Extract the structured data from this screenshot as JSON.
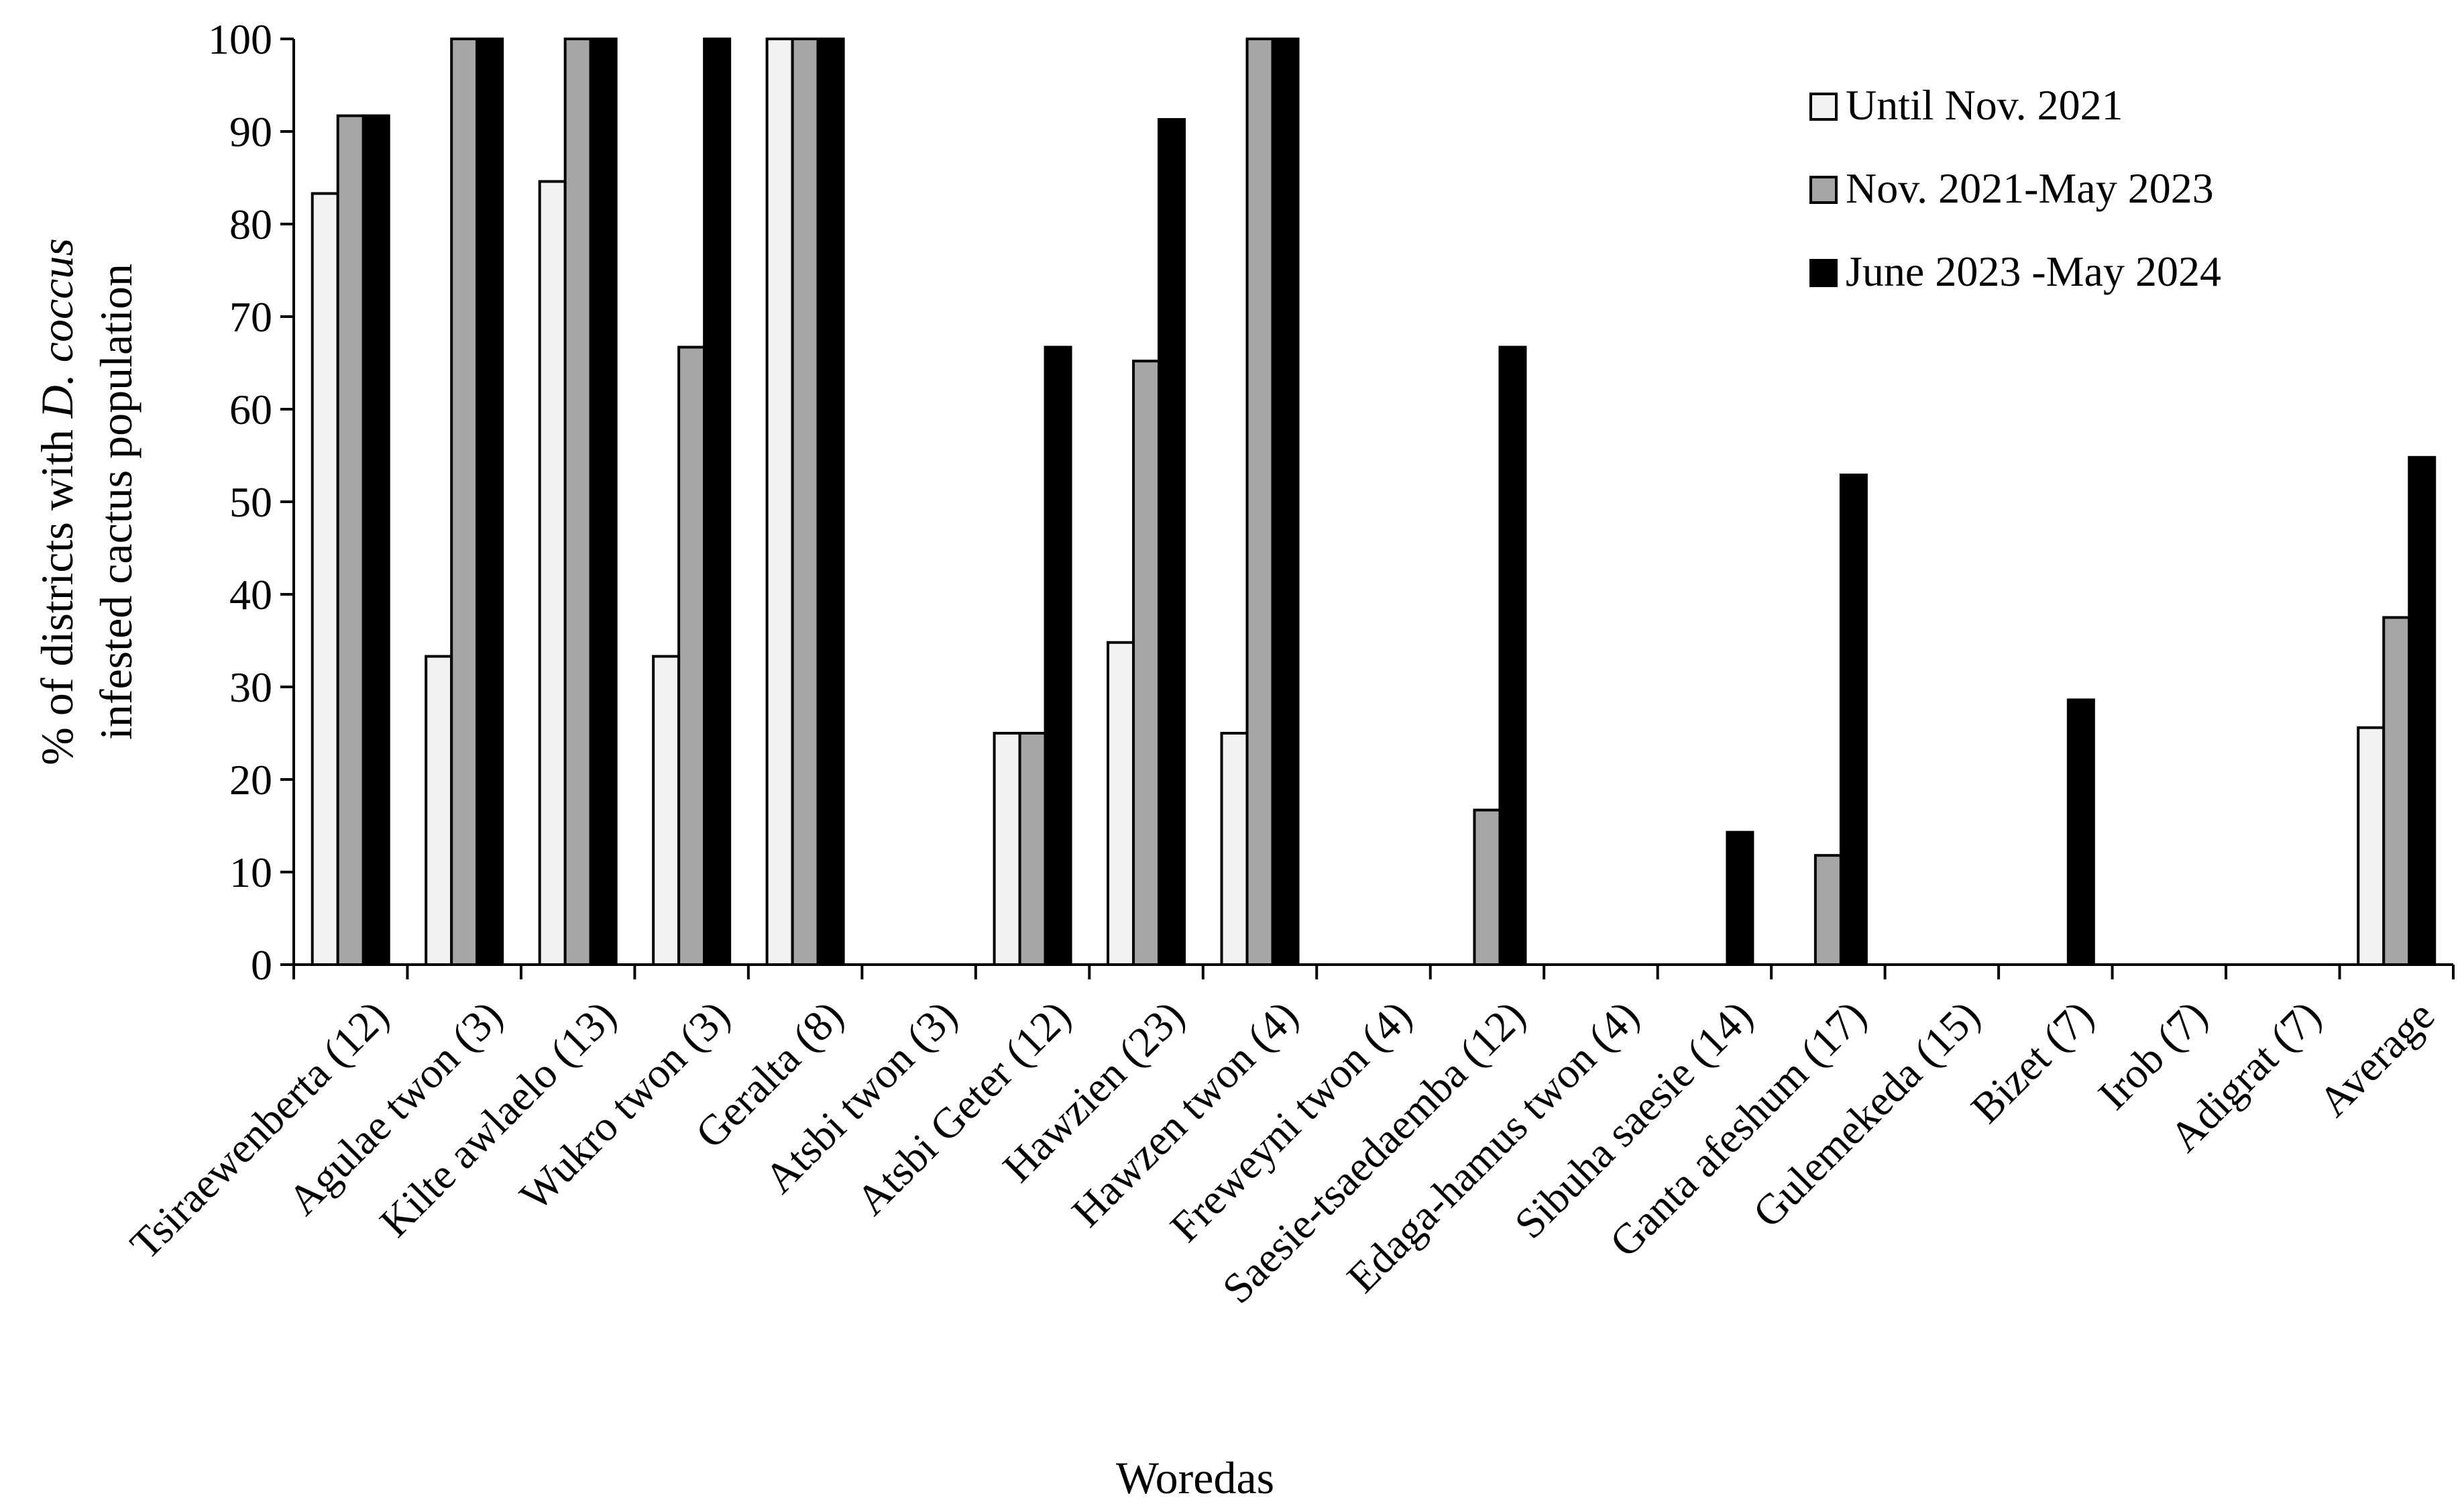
{
  "chart_data": {
    "type": "bar",
    "title": "",
    "xlabel": "Woredas",
    "ylabel_lines": [
      "% of districts with ",
      "D. coccus",
      "infested cactus population"
    ],
    "ylim": [
      0,
      100
    ],
    "yticks": [
      0,
      10,
      20,
      30,
      40,
      50,
      60,
      70,
      80,
      90,
      100
    ],
    "grid": false,
    "legend_position": "top-right",
    "categories": [
      "Tsiraewenberta (12)",
      "Agulae twon (3)",
      "Kilte awlaelo (13)",
      "Wukro twon (3)",
      "Geralta (8)",
      "Atsbi twon (3)",
      "Atsbi Geter (12)",
      "Hawzien (23)",
      "Hawzen twon (4)",
      "Freweyni twon (4)",
      "Saesie-tsaedaemba (12)",
      "Edaga-hamus twon (4)",
      "Sibuha saesie (14)",
      "Ganta afeshum (17)",
      "Gulemekeda (15)",
      "Bizet (7)",
      "Irob (7)",
      "Adigrat (7)",
      "Average"
    ],
    "series": [
      {
        "name": "Until Nov. 2021",
        "color": "#f2f2f2",
        "values": [
          83.3,
          33.3,
          84.6,
          33.3,
          100,
          0,
          25,
          34.8,
          25,
          0,
          0,
          0,
          0,
          0,
          0,
          0,
          0,
          0,
          25.6
        ]
      },
      {
        "name": "Nov. 2021-May 2023",
        "color": "#a6a6a6",
        "values": [
          91.7,
          100,
          100,
          66.7,
          100,
          0,
          25,
          65.2,
          100,
          0,
          16.7,
          0,
          0,
          11.8,
          0,
          0,
          0,
          0,
          37.5
        ]
      },
      {
        "name": "June 2023 -May 2024",
        "color": "#000000",
        "values": [
          91.7,
          100,
          100,
          100,
          100,
          0,
          66.7,
          91.3,
          100,
          0,
          66.7,
          0,
          14.3,
          52.9,
          0,
          28.6,
          0,
          0,
          54.8
        ]
      }
    ]
  }
}
